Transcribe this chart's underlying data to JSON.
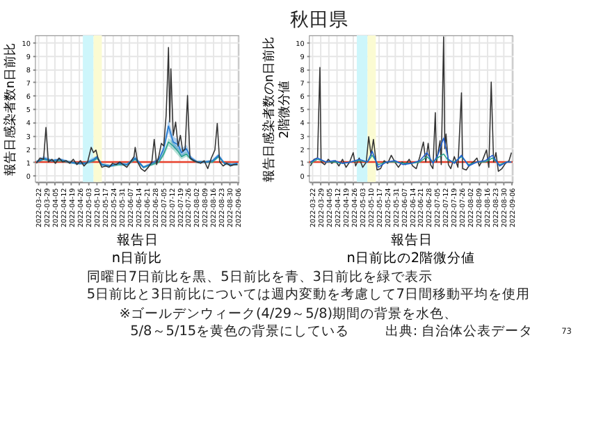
{
  "chart_data": [
    {
      "type": "line",
      "title": "n日前比",
      "xlabel": "報告日",
      "ylabel": "報告日感染者数n日前比",
      "annotations": [
        "秋田県"
      ],
      "xlim": [
        "2022-03-20",
        "2022-09-07"
      ],
      "xticks": [
        "2022-03-22",
        "2022-03-29",
        "2022-04-05",
        "2022-04-12",
        "2022-04-19",
        "2022-04-26",
        "2022-05-03",
        "2022-05-10",
        "2022-05-17",
        "2022-05-24",
        "2022-05-31",
        "2022-06-07",
        "2022-06-14",
        "2022-06-21",
        "2022-06-28",
        "2022-07-05",
        "2022-07-12",
        "2022-07-19",
        "2022-07-26",
        "2022-08-02",
        "2022-08-09",
        "2022-08-16",
        "2022-08-23",
        "2022-08-30",
        "2022-09-06"
      ],
      "ylim": [
        -0.5,
        10.5
      ],
      "yticks": [
        0,
        1,
        2,
        3,
        4,
        5,
        6,
        7,
        8,
        9,
        10
      ],
      "grid": true,
      "bands": [
        {
          "axis": "x",
          "from": "2022-04-29",
          "to": "2022-05-08",
          "color": "#cdf6fb"
        },
        {
          "axis": "x",
          "from": "2022-05-08",
          "to": "2022-05-15",
          "color": "#fbfbd2"
        }
      ],
      "ref_lines": [
        {
          "axis": "y",
          "value": 1,
          "color": "#e8412c"
        }
      ],
      "series": [
        {
          "type": "line",
          "color": "#2ca58d",
          "x": [
            "2022-03-21",
            "2022-03-27",
            "2022-04-03",
            "2022-04-10",
            "2022-04-17",
            "2022-04-24",
            "2022-05-01",
            "2022-05-08",
            "2022-05-11",
            "2022-05-15",
            "2022-05-22",
            "2022-05-29",
            "2022-06-05",
            "2022-06-12",
            "2022-06-19",
            "2022-06-26",
            "2022-07-02",
            "2022-07-06",
            "2022-07-10",
            "2022-07-14",
            "2022-07-18",
            "2022-07-21",
            "2022-07-25",
            "2022-07-29",
            "2022-08-03",
            "2022-08-10",
            "2022-08-16",
            "2022-08-21",
            "2022-08-26",
            "2022-09-01",
            "2022-09-06"
          ],
          "values": [
            1.0,
            1.2,
            1.1,
            1.1,
            1.0,
            0.9,
            0.9,
            1.1,
            1.3,
            0.8,
            0.7,
            0.8,
            0.8,
            1.2,
            0.6,
            0.8,
            1.0,
            1.6,
            2.5,
            2.2,
            1.8,
            1.4,
            1.6,
            1.2,
            1.0,
            1.0,
            1.0,
            1.4,
            0.9,
            0.8,
            0.8
          ],
          "lower": [
            0.9,
            1.1,
            1.0,
            1.0,
            0.9,
            0.8,
            0.8,
            1.0,
            1.2,
            0.7,
            0.6,
            0.7,
            0.7,
            1.1,
            0.5,
            0.7,
            0.9,
            1.4,
            2.2,
            1.9,
            1.5,
            1.2,
            1.4,
            1.1,
            0.9,
            0.9,
            0.9,
            1.3,
            0.8,
            0.7,
            0.75
          ],
          "upper": [
            1.1,
            1.3,
            1.2,
            1.2,
            1.1,
            1.0,
            1.0,
            1.2,
            1.4,
            0.9,
            0.8,
            0.9,
            0.9,
            1.3,
            0.7,
            0.9,
            1.1,
            1.8,
            2.8,
            2.5,
            2.1,
            1.6,
            1.8,
            1.3,
            1.1,
            1.1,
            1.1,
            1.5,
            1.0,
            0.9,
            0.95
          ]
        },
        {
          "type": "line",
          "color": "#1f78d1",
          "x": [
            "2022-03-21",
            "2022-03-27",
            "2022-04-03",
            "2022-04-10",
            "2022-04-17",
            "2022-04-24",
            "2022-05-01",
            "2022-05-08",
            "2022-05-11",
            "2022-05-15",
            "2022-05-22",
            "2022-05-29",
            "2022-06-05",
            "2022-06-12",
            "2022-06-19",
            "2022-06-26",
            "2022-07-02",
            "2022-07-06",
            "2022-07-10",
            "2022-07-14",
            "2022-07-18",
            "2022-07-21",
            "2022-07-25",
            "2022-07-29",
            "2022-08-03",
            "2022-08-10",
            "2022-08-16",
            "2022-08-21",
            "2022-08-26",
            "2022-09-01",
            "2022-09-06"
          ],
          "values": [
            1.0,
            1.3,
            1.1,
            1.2,
            1.0,
            0.9,
            0.9,
            1.2,
            1.4,
            0.8,
            0.7,
            0.9,
            0.8,
            1.3,
            0.6,
            0.9,
            1.2,
            2.0,
            3.7,
            2.5,
            2.3,
            1.7,
            2.0,
            1.3,
            1.0,
            1.0,
            1.1,
            1.5,
            0.9,
            0.8,
            0.9
          ],
          "lower": [
            0.9,
            1.15,
            1.0,
            1.1,
            0.9,
            0.8,
            0.8,
            1.05,
            1.2,
            0.7,
            0.6,
            0.8,
            0.7,
            1.15,
            0.5,
            0.8,
            1.05,
            1.7,
            3.2,
            2.1,
            1.9,
            1.4,
            1.7,
            1.15,
            0.9,
            0.9,
            1.0,
            1.35,
            0.8,
            0.7,
            0.75
          ],
          "upper": [
            1.1,
            1.45,
            1.2,
            1.3,
            1.1,
            1.0,
            1.0,
            1.35,
            1.5,
            0.9,
            0.8,
            1.0,
            0.9,
            1.45,
            0.7,
            1.0,
            1.35,
            2.3,
            4.2,
            2.9,
            2.7,
            2.0,
            2.3,
            1.45,
            1.1,
            1.1,
            1.2,
            1.65,
            1.0,
            0.9,
            0.95
          ]
        },
        {
          "type": "line",
          "color": "#333333",
          "x": [
            "2022-03-21",
            "2022-03-24",
            "2022-03-27",
            "2022-03-29",
            "2022-03-31",
            "2022-04-03",
            "2022-04-06",
            "2022-04-09",
            "2022-04-12",
            "2022-04-15",
            "2022-04-18",
            "2022-04-21",
            "2022-04-24",
            "2022-04-27",
            "2022-04-30",
            "2022-05-03",
            "2022-05-06",
            "2022-05-08",
            "2022-05-10",
            "2022-05-12",
            "2022-05-15",
            "2022-05-18",
            "2022-05-21",
            "2022-05-24",
            "2022-05-27",
            "2022-05-30",
            "2022-06-02",
            "2022-06-05",
            "2022-06-08",
            "2022-06-11",
            "2022-06-12",
            "2022-06-14",
            "2022-06-17",
            "2022-06-20",
            "2022-06-23",
            "2022-06-26",
            "2022-06-28",
            "2022-06-30",
            "2022-07-02",
            "2022-07-04",
            "2022-07-06",
            "2022-07-08",
            "2022-07-09",
            "2022-07-10",
            "2022-07-11",
            "2022-07-12",
            "2022-07-14",
            "2022-07-16",
            "2022-07-18",
            "2022-07-20",
            "2022-07-22",
            "2022-07-24",
            "2022-07-26",
            "2022-07-28",
            "2022-07-31",
            "2022-08-03",
            "2022-08-06",
            "2022-08-09",
            "2022-08-12",
            "2022-08-15",
            "2022-08-18",
            "2022-08-20",
            "2022-08-22",
            "2022-08-25",
            "2022-08-28",
            "2022-08-31",
            "2022-09-03",
            "2022-09-06"
          ],
          "values": [
            0.9,
            1.3,
            1.2,
            3.6,
            1.0,
            1.2,
            0.9,
            1.3,
            1.0,
            1.1,
            0.9,
            1.2,
            0.8,
            1.1,
            0.7,
            1.0,
            2.1,
            1.7,
            1.9,
            1.2,
            0.6,
            0.7,
            0.6,
            0.9,
            0.8,
            1.0,
            0.8,
            0.6,
            1.0,
            1.4,
            2.1,
            1.0,
            0.5,
            0.3,
            0.6,
            1.0,
            2.7,
            0.8,
            1.5,
            2.4,
            2.2,
            4.5,
            6.9,
            9.6,
            4.0,
            8.0,
            3.0,
            4.0,
            2.2,
            3.0,
            1.8,
            2.0,
            6.0,
            1.3,
            1.1,
            1.0,
            0.9,
            1.1,
            0.5,
            1.3,
            1.9,
            3.9,
            1.0,
            0.7,
            0.9,
            0.7,
            0.8,
            0.8
          ]
        }
      ]
    },
    {
      "type": "line",
      "title": "n日前比の2階微分値",
      "xlabel": "報告日",
      "ylabel": "報告日感染者数のn日前比\n2階微分値",
      "annotations": [
        "同曜日7日前比を黒、5日前比を青、3日前比を緑で表示",
        "5日前比と3日前比については週内変動を考慮して7日間移動平均を使用",
        "※ゴールデンウィーク(4/29～5/8)期間の背景を水色、",
        "5/8～5/15を黄色の背景にしている",
        "出典: 自治体公表データ",
        "73"
      ],
      "xlim": [
        "2022-03-20",
        "2022-09-07"
      ],
      "xticks": [
        "2022-03-22",
        "2022-03-29",
        "2022-04-05",
        "2022-04-12",
        "2022-04-19",
        "2022-04-26",
        "2022-05-03",
        "2022-05-10",
        "2022-05-17",
        "2022-05-24",
        "2022-05-31",
        "2022-06-07",
        "2022-06-14",
        "2022-06-21",
        "2022-06-28",
        "2022-07-05",
        "2022-07-12",
        "2022-07-19",
        "2022-07-26",
        "2022-08-02",
        "2022-08-09",
        "2022-08-16",
        "2022-08-23",
        "2022-08-30",
        "2022-09-06"
      ],
      "ylim": [
        -0.5,
        10.5
      ],
      "yticks": [
        0,
        1,
        2,
        3,
        4,
        5,
        6,
        7,
        8,
        9,
        10
      ],
      "grid": true,
      "bands": [
        {
          "axis": "x",
          "from": "2022-04-29",
          "to": "2022-05-08",
          "color": "#cdf6fb"
        },
        {
          "axis": "x",
          "from": "2022-05-08",
          "to": "2022-05-15",
          "color": "#fbfbd2"
        }
      ],
      "ref_lines": [
        {
          "axis": "y",
          "value": 1,
          "color": "#e8412c"
        }
      ],
      "series": [
        {
          "type": "line",
          "color": "#333333",
          "x": [
            "2022-03-21",
            "2022-03-24",
            "2022-03-27",
            "2022-03-29",
            "2022-03-30",
            "2022-04-02",
            "2022-04-05",
            "2022-04-08",
            "2022-04-11",
            "2022-04-14",
            "2022-04-17",
            "2022-04-20",
            "2022-04-23",
            "2022-04-26",
            "2022-04-28",
            "2022-05-01",
            "2022-05-04",
            "2022-05-07",
            "2022-05-09",
            "2022-05-11",
            "2022-05-13",
            "2022-05-16",
            "2022-05-19",
            "2022-05-22",
            "2022-05-25",
            "2022-05-28",
            "2022-05-31",
            "2022-06-03",
            "2022-06-06",
            "2022-06-09",
            "2022-06-12",
            "2022-06-15",
            "2022-06-18",
            "2022-06-21",
            "2022-06-24",
            "2022-06-26",
            "2022-06-28",
            "2022-06-30",
            "2022-07-02",
            "2022-07-04",
            "2022-07-05",
            "2022-07-08",
            "2022-07-09",
            "2022-07-11",
            "2022-07-12",
            "2022-07-13",
            "2022-07-15",
            "2022-07-17",
            "2022-07-20",
            "2022-07-23",
            "2022-07-26",
            "2022-07-27",
            "2022-07-30",
            "2022-08-02",
            "2022-08-05",
            "2022-08-08",
            "2022-08-10",
            "2022-08-13",
            "2022-08-16",
            "2022-08-18",
            "2022-08-20",
            "2022-08-22",
            "2022-08-24",
            "2022-08-26",
            "2022-08-29",
            "2022-09-01",
            "2022-09-04",
            "2022-09-06"
          ],
          "values": [
            0.7,
            1.2,
            1.3,
            8.1,
            1.0,
            0.8,
            1.2,
            0.9,
            1.1,
            0.7,
            1.2,
            0.6,
            1.0,
            1.7,
            0.7,
            1.3,
            0.6,
            1.0,
            2.9,
            1.5,
            2.7,
            0.4,
            0.5,
            1.1,
            0.9,
            1.5,
            1.0,
            0.6,
            1.0,
            0.8,
            1.2,
            0.7,
            0.5,
            1.4,
            2.5,
            1.0,
            2.4,
            0.8,
            0.5,
            4.7,
            1.0,
            2.6,
            0.8,
            10.4,
            2.0,
            3.1,
            0.8,
            0.5,
            1.4,
            0.6,
            6.2,
            0.5,
            0.4,
            0.8,
            1.0,
            1.3,
            0.7,
            1.2,
            1.9,
            0.6,
            7.0,
            1.0,
            1.7,
            0.3,
            0.5,
            0.9,
            1.1,
            1.7
          ]
        },
        {
          "type": "line",
          "color": "#2ca58d",
          "x": [
            "2022-03-21",
            "2022-03-27",
            "2022-04-03",
            "2022-04-10",
            "2022-04-17",
            "2022-04-24",
            "2022-05-01",
            "2022-05-08",
            "2022-05-12",
            "2022-05-17",
            "2022-05-24",
            "2022-05-31",
            "2022-06-07",
            "2022-06-14",
            "2022-06-21",
            "2022-06-27",
            "2022-07-02",
            "2022-07-06",
            "2022-07-11",
            "2022-07-15",
            "2022-07-20",
            "2022-07-26",
            "2022-08-01",
            "2022-08-08",
            "2022-08-15",
            "2022-08-21",
            "2022-08-27",
            "2022-09-02",
            "2022-09-06"
          ],
          "values": [
            0.9,
            1.2,
            1.0,
            1.0,
            0.9,
            1.0,
            1.1,
            1.0,
            1.5,
            0.8,
            1.0,
            1.0,
            0.9,
            0.9,
            1.0,
            1.4,
            1.0,
            1.3,
            1.6,
            1.1,
            1.0,
            1.4,
            0.8,
            1.0,
            1.0,
            1.3,
            0.8,
            1.0,
            1.0
          ]
        },
        {
          "type": "line",
          "color": "#1f5fd1",
          "x": [
            "2022-03-21",
            "2022-03-27",
            "2022-04-03",
            "2022-04-10",
            "2022-04-17",
            "2022-04-24",
            "2022-05-01",
            "2022-05-08",
            "2022-05-12",
            "2022-05-17",
            "2022-05-24",
            "2022-05-31",
            "2022-06-07",
            "2022-06-14",
            "2022-06-21",
            "2022-06-27",
            "2022-07-02",
            "2022-07-06",
            "2022-07-11",
            "2022-07-15",
            "2022-07-20",
            "2022-07-26",
            "2022-08-01",
            "2022-08-08",
            "2022-08-15",
            "2022-08-21",
            "2022-08-27",
            "2022-09-02",
            "2022-09-06"
          ],
          "values": [
            1.0,
            1.3,
            1.0,
            1.1,
            0.9,
            1.0,
            1.2,
            1.0,
            1.8,
            0.6,
            1.0,
            1.1,
            0.8,
            0.9,
            1.1,
            1.7,
            0.9,
            1.5,
            2.8,
            1.2,
            0.9,
            1.5,
            0.7,
            1.0,
            1.1,
            1.5,
            0.7,
            1.0,
            1.0
          ]
        }
      ]
    }
  ]
}
